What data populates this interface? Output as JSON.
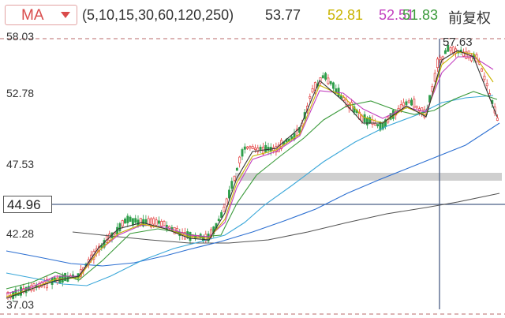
{
  "header": {
    "indicator_select": "MA",
    "params": "(5,10,15,30,60,120,250)",
    "ma_values": [
      {
        "text": "53.77",
        "color": "#333333"
      },
      {
        "text": "52.81",
        "color": "#c9b400"
      },
      {
        "text": "52.51",
        "color": "#c23fbf"
      },
      {
        "text": "51.83",
        "color": "#3a9a3a"
      }
    ],
    "adjust_label": "前复权"
  },
  "price_axis": {
    "ticks": [
      {
        "label": "58.03",
        "value": 58.03
      },
      {
        "label": "52.78",
        "value": 52.78
      },
      {
        "label": "47.53",
        "value": 47.53
      },
      {
        "label": "42.28",
        "value": 42.28
      },
      {
        "label": "37.03",
        "value": 37.03
      }
    ],
    "current_price": "44.96",
    "peak_label": "57.63"
  },
  "colors": {
    "up": "#e33b3b",
    "down": "#2e9e4b",
    "ma5": "#333333",
    "ma10": "#c9b400",
    "ma15": "#c23fbf",
    "ma30": "#3a9a3a",
    "ma60": "#3aa7d9",
    "ma120": "#2c6fd1",
    "ma250": "#555555"
  }
}
